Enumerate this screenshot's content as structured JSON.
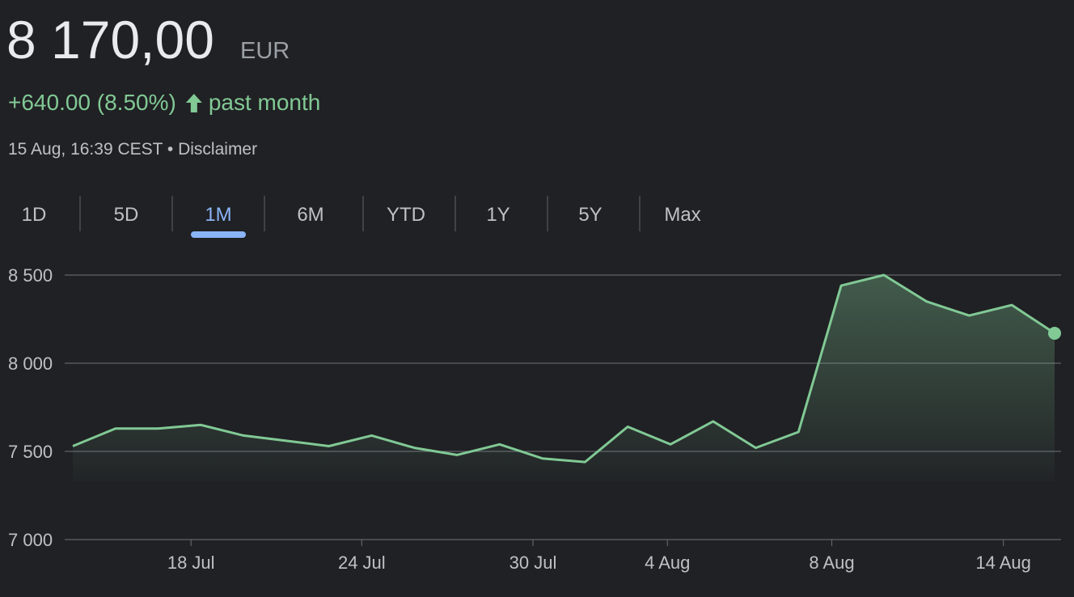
{
  "header": {
    "price": "8 170,00",
    "currency": "EUR",
    "change": "+640.00 (8.50%)",
    "period": "past month",
    "timestamp": "15 Aug, 16:39 CEST • Disclaimer"
  },
  "tabs": [
    {
      "label": "1D",
      "selected": false
    },
    {
      "label": "5D",
      "selected": false
    },
    {
      "label": "1M",
      "selected": true
    },
    {
      "label": "6M",
      "selected": false
    },
    {
      "label": "YTD",
      "selected": false
    },
    {
      "label": "1Y",
      "selected": false
    },
    {
      "label": "5Y",
      "selected": false
    },
    {
      "label": "Max",
      "selected": false
    }
  ],
  "chart_data": {
    "type": "area",
    "color": "#81c995",
    "grid": true,
    "x": [
      0,
      1,
      2,
      3,
      4,
      5,
      6,
      7,
      8,
      9,
      10,
      11,
      12,
      13,
      14,
      15,
      16,
      17,
      18,
      19,
      20,
      21,
      22,
      23
    ],
    "values": [
      7530,
      7630,
      7630,
      7650,
      7590,
      7560,
      7530,
      7590,
      7520,
      7480,
      7540,
      7460,
      7440,
      7640,
      7540,
      7670,
      7520,
      7610,
      8440,
      8500,
      8350,
      8270,
      8330,
      8170
    ],
    "xlim": [
      0,
      23
    ],
    "xticks": [
      {
        "value": 2.77,
        "label": "18 Jul"
      },
      {
        "value": 6.77,
        "label": "24 Jul"
      },
      {
        "value": 10.78,
        "label": "30 Jul"
      },
      {
        "value": 13.93,
        "label": "4 Aug"
      },
      {
        "value": 17.78,
        "label": "8 Aug"
      },
      {
        "value": 21.8,
        "label": "14 Aug"
      }
    ],
    "ylim": [
      7000,
      8500
    ],
    "yticks": [
      {
        "value": 7000,
        "label": "7 000"
      },
      {
        "value": 7500,
        "label": "7 500"
      },
      {
        "value": 8000,
        "label": "8 000"
      },
      {
        "value": 8500,
        "label": "8 500"
      }
    ]
  }
}
